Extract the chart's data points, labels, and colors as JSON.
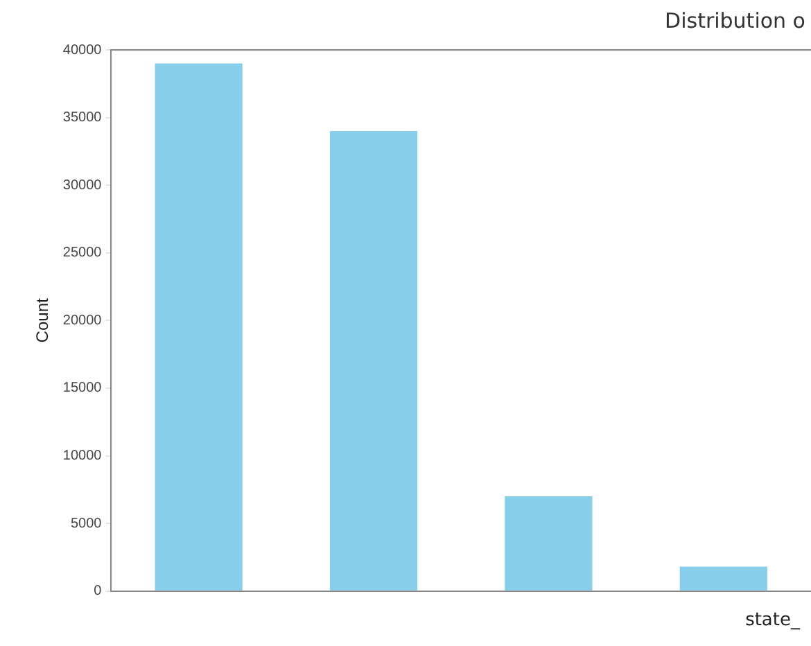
{
  "chart_data": {
    "type": "bar",
    "title": "Distribution o",
    "xlabel": "state_",
    "ylabel": "Count",
    "categories": [
      null,
      null,
      null,
      null
    ],
    "values": [
      39000,
      34000,
      7000,
      1800
    ],
    "color": "#87ceeb",
    "ylim": [
      0,
      40000
    ],
    "yticks": [
      0,
      5000,
      10000,
      15000,
      20000,
      25000,
      30000,
      35000,
      40000
    ],
    "grid": false,
    "legend": false
  }
}
